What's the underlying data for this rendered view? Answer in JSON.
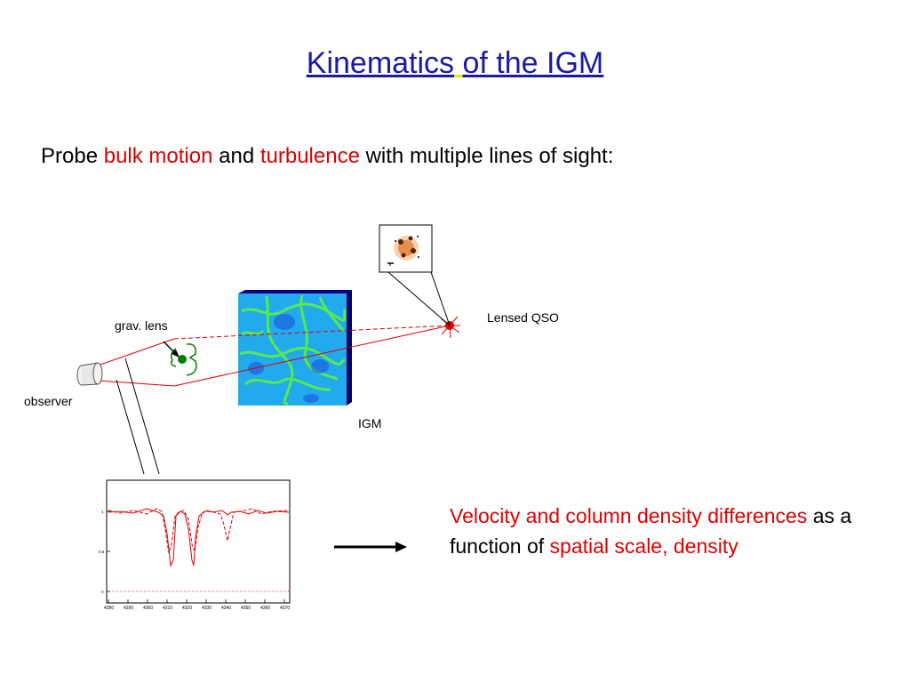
{
  "slide": {
    "title_part1": "Kinematics",
    "title_part2": "of the IGM",
    "subtitle": {
      "prefix": "Probe ",
      "highlight1": "bulk motion",
      "middle": " and ",
      "highlight2": "turbulence",
      "suffix": " with multiple lines of sight:"
    }
  },
  "diagram": {
    "labels": {
      "grav_lens": "grav. lens",
      "lensed_qso": "Lensed QSO",
      "observer": "observer",
      "igm": "IGM"
    },
    "spectrum_axis": {
      "x_ticks": [
        "4280",
        "4290",
        "4300",
        "4310",
        "4320",
        "4330",
        "4340",
        "4350",
        "4360",
        "4370"
      ],
      "y_ticks": [
        "1",
        "0.5",
        "0"
      ]
    }
  },
  "conclusion": {
    "highlight1": "Velocity and column density differences",
    "middle": " as a function of ",
    "highlight2": "spatial scale, density"
  },
  "colors": {
    "title": "#1a1aa6",
    "highlight": "#e00000",
    "spectrum_line": "#e00000",
    "lens": "#008000",
    "qso": "#e00000"
  }
}
